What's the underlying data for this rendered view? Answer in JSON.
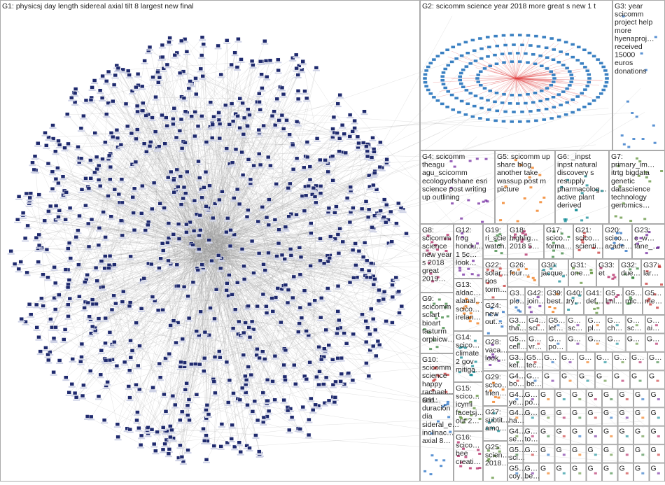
{
  "groups": [
    {
      "label": [
        "G1: physicsj day length sidereal axial tilt 8 largest new final"
      ]
    },
    {
      "label": [
        "G2: scicomm science year 2018 more great s new 1 t"
      ]
    },
    {
      "label": [
        "G3: year",
        "scicomm",
        "project help",
        "more",
        "hyenaproj…",
        "received",
        "15000",
        "euros",
        "donations"
      ]
    },
    {
      "label": [
        "G4: scicomm",
        "theagu",
        "agu_scicomm",
        "ecologyofshane esri",
        "science post writing",
        "up outlining"
      ]
    },
    {
      "label": [
        "G5: scicomm up",
        "share blog",
        "another take",
        "wassup post m",
        "picture"
      ]
    },
    {
      "label": [
        "G6: _inpst",
        "inpst natural",
        "discovery s",
        "resupply",
        "pharmacolog…",
        "active plant",
        "derived"
      ]
    },
    {
      "label": [
        "G7:",
        "primary_im…",
        "itrtg bigdata",
        "genetic",
        "datascience",
        "technology",
        "genomics…"
      ]
    },
    {
      "label": [
        "G8:",
        "scicomm",
        "science",
        "new year",
        "s 2018",
        "great",
        "2019…"
      ]
    },
    {
      "label": [
        "G9:",
        "scicomm",
        "sciart",
        "bioart",
        "tasturm",
        "orphicw…"
      ]
    },
    {
      "label": [
        "G10:",
        "scicomm",
        "science",
        "happy",
        "rachael…",
        "see…"
      ]
    },
    {
      "label": [
        "G11:",
        "duración",
        "día",
        "sideral_e…",
        "inclinac…",
        "axial 8…"
      ]
    },
    {
      "label": [
        "G12:",
        "frog",
        "hondu…",
        "1 5c…",
        "look…"
      ]
    },
    {
      "label": [
        "G13:",
        "aldac…",
        "alanal…",
        "scico…",
        "irelan…"
      ]
    },
    {
      "label": [
        "G14:",
        "scico…",
        "climate",
        "2 gov",
        "mitiga…"
      ]
    },
    {
      "label": [
        "G15:",
        "scico…",
        "icymi",
        "facetsj…",
        "out 2…"
      ]
    },
    {
      "label": [
        "G16:",
        "scico…",
        "bee",
        "creati…"
      ]
    },
    {
      "label": [
        "G19:",
        "ri_scie…",
        "watch…"
      ]
    },
    {
      "label": [
        "G22:",
        "solar…",
        "rios",
        "torm…"
      ]
    },
    {
      "label": [
        "G24:",
        "new",
        "out…"
      ]
    },
    {
      "label": [
        "G28:",
        "vaca…",
        "look…"
      ]
    },
    {
      "label": [
        "G29:",
        "scico…",
        "frien…"
      ]
    },
    {
      "label": [
        "G27:",
        "subtit…",
        "amo…"
      ]
    },
    {
      "label": [
        "G25:",
        "scien…",
        "2018…"
      ]
    },
    {
      "label": [
        "G18:",
        "highlig…",
        "2018 5…"
      ]
    },
    {
      "label": [
        "G17:",
        "scico…",
        "forma…"
      ]
    },
    {
      "label": [
        "G21:",
        "scico…",
        "scienti…"
      ]
    },
    {
      "label": [
        "G20:",
        "scico…",
        "acade…"
      ]
    },
    {
      "label": [
        "G23:",
        "c_w…",
        "fane_…"
      ]
    },
    {
      "label": [
        "G26:",
        "four…"
      ]
    },
    {
      "label": [
        "G30:",
        "jacque…"
      ]
    },
    {
      "label": [
        "G31:",
        "one…"
      ]
    },
    {
      "label": [
        "G33:",
        "et"
      ]
    },
    {
      "label": [
        "G32:",
        "due…"
      ]
    },
    {
      "label": [
        "G37:",
        "lar…"
      ]
    },
    {
      "label": [
        "G3…",
        "plo…"
      ]
    },
    {
      "label": [
        "G42:",
        "join…"
      ]
    },
    {
      "label": [
        "G39:",
        "best…"
      ]
    },
    {
      "label": [
        "G40:",
        "try…"
      ]
    },
    {
      "label": [
        "G41:",
        "def…"
      ]
    },
    {
      "label": [
        "G5…",
        "lml…"
      ]
    },
    {
      "label": [
        "G5…",
        "mic…"
      ]
    },
    {
      "label": [
        "G5…",
        "me…"
      ]
    }
  ],
  "minor_groups": [
    [
      "G3…",
      "tha…"
    ],
    [
      "G4…",
      "sci…"
    ],
    [
      "G5…",
      "lef…"
    ],
    [
      "G…",
      "sc…"
    ],
    [
      "G…",
      "pl…"
    ],
    [
      "G…",
      "ch…"
    ],
    [
      "G…",
      "sc…"
    ],
    [
      "G…",
      "ai…"
    ],
    [
      "G5…",
      "cell…"
    ],
    [
      "G…",
      "vr…"
    ],
    [
      "G…",
      "po…"
    ],
    [
      "G…"
    ],
    [
      "G…"
    ],
    [
      "G…"
    ],
    [
      "G…"
    ],
    [
      "G…"
    ],
    [
      "G3…",
      "kel…"
    ],
    [
      "G5…",
      "tec…"
    ],
    [
      "G…"
    ],
    [
      "G…"
    ],
    [
      "G…"
    ],
    [
      "G…"
    ],
    [
      "G…"
    ],
    [
      "G…"
    ],
    [
      "G…"
    ],
    [
      "G4…",
      "bo…"
    ],
    [
      "G…",
      "be…"
    ],
    [
      "G"
    ],
    [
      "G"
    ],
    [
      "G"
    ],
    [
      "G"
    ],
    [
      "G"
    ],
    [
      "G"
    ],
    [
      "G"
    ],
    [
      "G4…",
      "ye…"
    ],
    [
      "G…",
      "po…"
    ],
    [
      "G"
    ],
    [
      "G"
    ],
    [
      "G"
    ],
    [
      "G"
    ],
    [
      "G"
    ],
    [
      "G"
    ],
    [
      "G"
    ],
    [
      "G"
    ],
    [
      "G4…",
      "ha…"
    ],
    [
      "G…"
    ],
    [
      "G"
    ],
    [
      "G"
    ],
    [
      "G"
    ],
    [
      "G"
    ],
    [
      "G"
    ],
    [
      "G"
    ],
    [
      "G"
    ],
    [
      "G"
    ],
    [
      "G4…",
      "se…"
    ],
    [
      "G…",
      "to…"
    ],
    [
      "G"
    ],
    [
      "G"
    ],
    [
      "G"
    ],
    [
      "G"
    ],
    [
      "G"
    ],
    [
      "G"
    ],
    [
      "G"
    ],
    [
      "G"
    ],
    [
      "G5…",
      "sci…"
    ],
    [
      "G…"
    ],
    [
      "G"
    ],
    [
      "G"
    ],
    [
      "G"
    ],
    [
      "G"
    ],
    [
      "G"
    ],
    [
      "G"
    ],
    [
      "G"
    ],
    [
      "G"
    ],
    [
      "G5…",
      "coy…"
    ],
    [
      "G…",
      "be…"
    ],
    [
      "G"
    ],
    [
      "G"
    ],
    [
      "G"
    ],
    [
      "G"
    ],
    [
      "G"
    ],
    [
      "G"
    ],
    [
      "G"
    ],
    [
      "G"
    ]
  ]
}
